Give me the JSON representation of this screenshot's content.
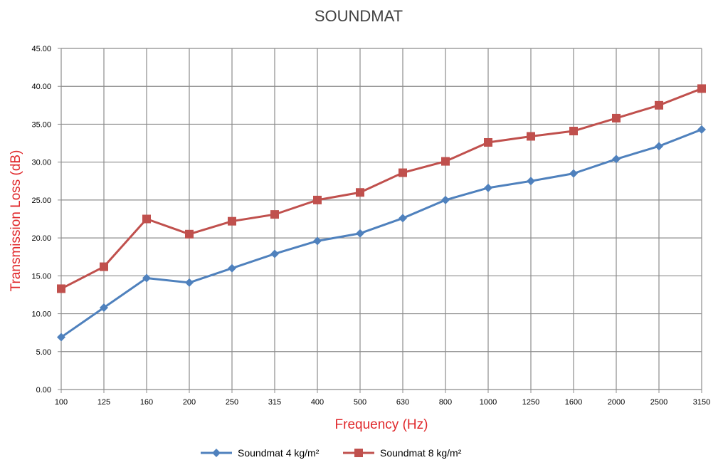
{
  "chart_data": {
    "type": "line",
    "title": "SOUNDMAT",
    "xlabel": "Frequency (Hz)",
    "ylabel": "Transmission  Loss (dB)",
    "categories": [
      "100",
      "125",
      "160",
      "200",
      "250",
      "315",
      "400",
      "500",
      "630",
      "800",
      "1000",
      "1250",
      "1600",
      "2000",
      "2500",
      "3150"
    ],
    "y_ticks": [
      "0.00",
      "5.00",
      "10.00",
      "15.00",
      "20.00",
      "25.00",
      "30.00",
      "35.00",
      "40.00",
      "45.00"
    ],
    "ylim": [
      0,
      45
    ],
    "grid": true,
    "legend_position": "bottom",
    "series": [
      {
        "name": "Soundmat 4 kg/m²",
        "color": "#4f81bd",
        "marker": "diamond",
        "values": [
          6.9,
          10.8,
          14.7,
          14.1,
          16.0,
          17.9,
          19.6,
          20.6,
          22.6,
          25.0,
          26.6,
          27.5,
          28.5,
          30.4,
          32.1,
          34.3
        ]
      },
      {
        "name": "Soundmat 8 kg/m²",
        "color": "#c0504d",
        "marker": "square",
        "values": [
          13.3,
          16.2,
          22.5,
          20.5,
          22.2,
          23.1,
          25.0,
          26.0,
          28.6,
          30.1,
          32.6,
          33.4,
          34.1,
          35.8,
          37.5,
          39.7
        ]
      }
    ]
  }
}
